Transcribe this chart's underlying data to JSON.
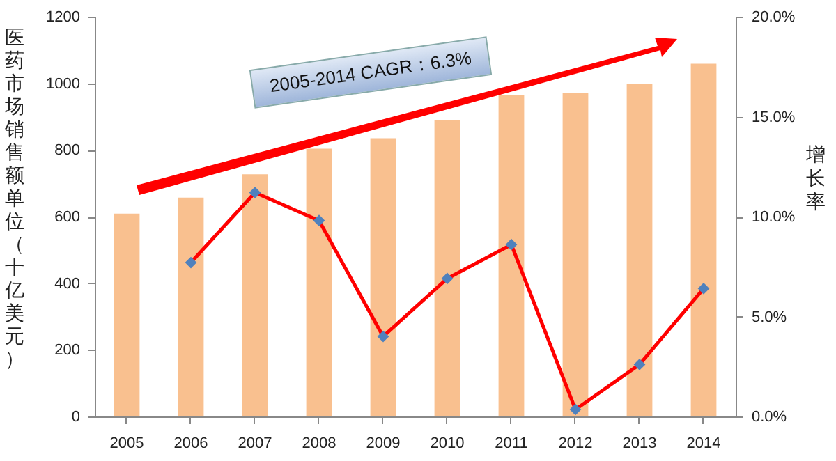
{
  "chart_data": {
    "type": "bar",
    "categories": [
      "2005",
      "2006",
      "2007",
      "2008",
      "2009",
      "2010",
      "2011",
      "2012",
      "2013",
      "2014"
    ],
    "ylabel": "医药市场销售额单位（十亿美元）",
    "y2label": "增长率",
    "series": [
      {
        "color": "#f9c08f",
        "values": [
          609,
          657,
          727,
          804,
          835,
          890,
          966,
          970,
          998,
          1059
        ]
      },
      {
        "type": "line",
        "axis": "y2",
        "color": "#ff0000",
        "marker": "diamond",
        "values": [
          null,
          7.7,
          11.2,
          9.8,
          4.0,
          6.9,
          8.6,
          0.35,
          2.6,
          6.4
        ]
      }
    ],
    "ylim": [
      0,
      1200
    ],
    "yticks": [
      0,
      200,
      400,
      600,
      800,
      1000,
      1200
    ],
    "y2lim": [
      0,
      20
    ],
    "y2ticks": [
      {
        "value": 0,
        "label": "0.0%"
      },
      {
        "value": 5,
        "label": "5.0%"
      },
      {
        "value": 10,
        "label": "10.0%"
      },
      {
        "value": 15,
        "label": "15.0%"
      },
      {
        "value": 20,
        "label": "20.0%"
      }
    ],
    "grid": false,
    "annotations": [
      "2005-2014 CAGR：6.3%"
    ]
  }
}
